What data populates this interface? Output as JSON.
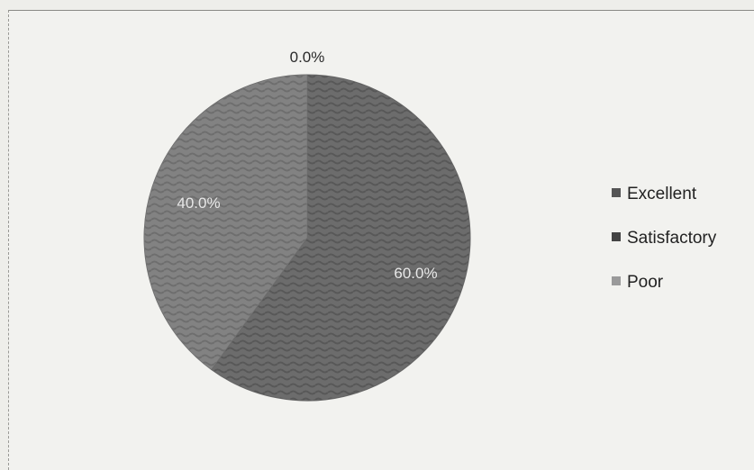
{
  "chart_data": {
    "type": "pie",
    "categories": [
      "Excellent",
      "Satisfactory",
      "Poor"
    ],
    "values": [
      0.0,
      60.0,
      40.0
    ],
    "data_labels": [
      "0.0%",
      "60.0%",
      "40.0%"
    ],
    "legend_position": "right",
    "colors": [
      "#555555",
      "#444444",
      "#9a9a9a"
    ]
  }
}
